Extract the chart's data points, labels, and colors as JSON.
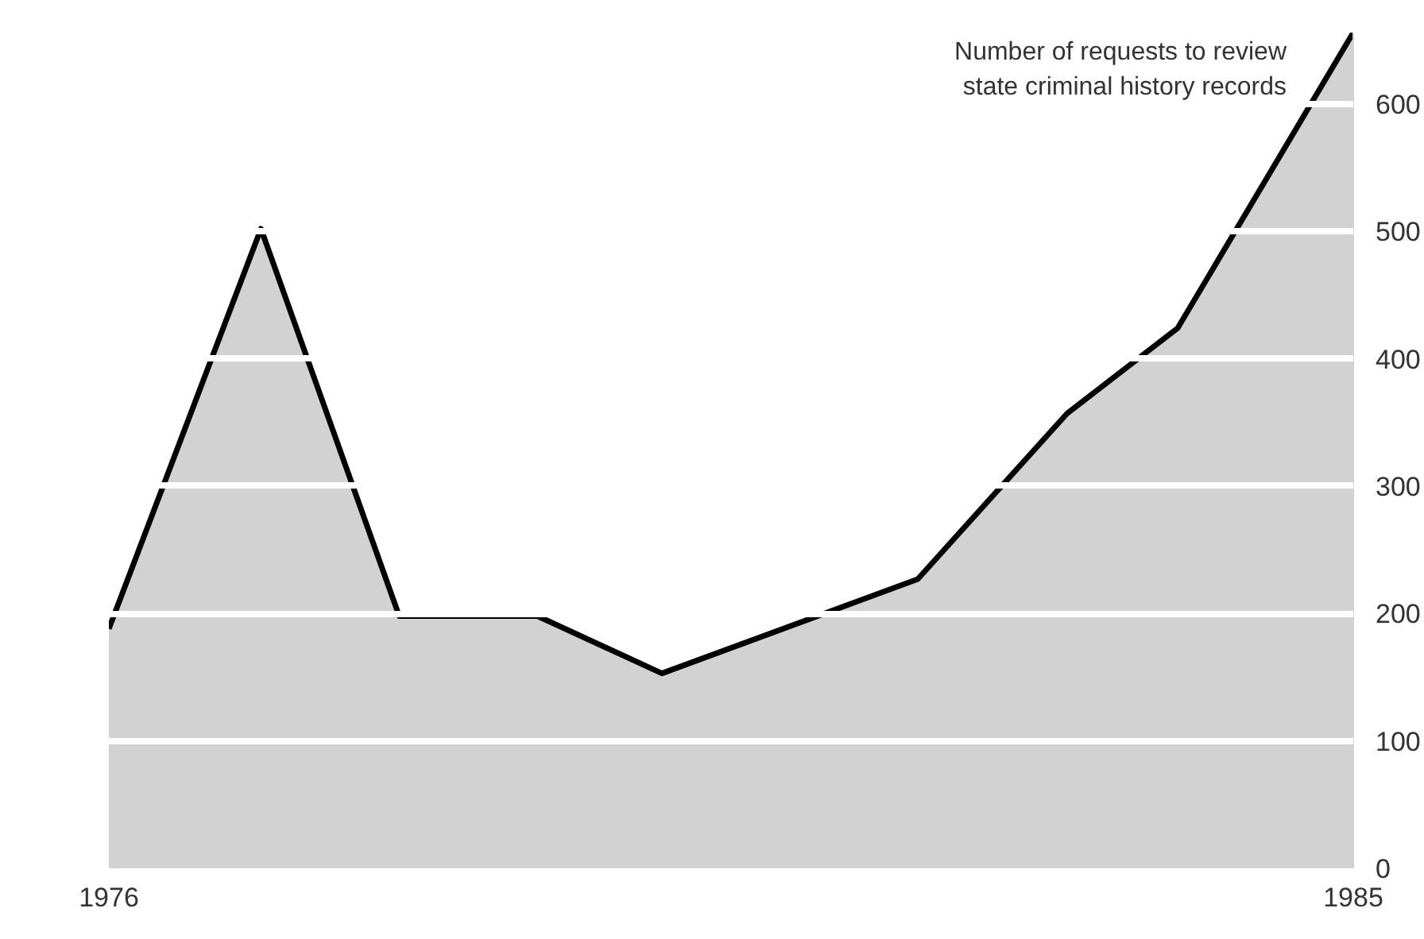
{
  "chart_data": {
    "type": "area",
    "x": [
      1976,
      1977.1,
      1978.1,
      1979.1,
      1980.0,
      1981.85,
      1982.93,
      1983.73,
      1985
    ],
    "series": [
      {
        "color": "#d2d2d2",
        "values": [
          188,
          502,
          198,
          198,
          153,
          227,
          357,
          424,
          656
        ]
      }
    ],
    "xlim": [
      1976,
      1985
    ],
    "xticks": [
      1976,
      1985
    ],
    "ylim": [
      0,
      656
    ],
    "yticks": [
      0,
      100,
      200,
      300,
      400,
      500,
      600
    ],
    "grid": "y",
    "annotations": [
      "Number of requests to review state criminal history records"
    ]
  }
}
